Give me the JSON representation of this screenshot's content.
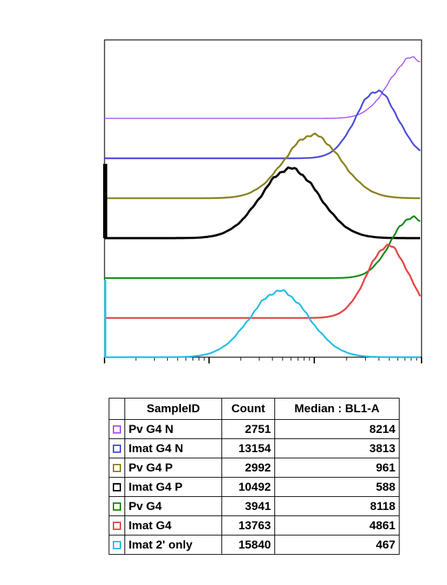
{
  "chart_data": {
    "type": "line",
    "subtype": "flow-cytometry-overlay-histogram",
    "xscale": "log",
    "grid": false,
    "legend": "table-below",
    "series": [
      {
        "name": "Pv G4 N",
        "color": "#a855f7",
        "count": "2751",
        "median": "8214",
        "peak_x": 8214,
        "width": 0.22
      },
      {
        "name": "Imat G4 N",
        "color": "#4b4bdc",
        "count": "13154",
        "median": "3813",
        "peak_x": 3813,
        "width": 0.2
      },
      {
        "name": "Pv G4 P",
        "color": "#8b8320",
        "count": "2992",
        "median": "961",
        "peak_x": 961,
        "width": 0.27
      },
      {
        "name": "Imat G4 P",
        "color": "#000000",
        "count": "10492",
        "median": "588",
        "peak_x": 588,
        "width": 0.28
      },
      {
        "name": "Pv G4",
        "color": "#138a13",
        "count": "3941",
        "median": "8118",
        "peak_x": 8118,
        "width": 0.2
      },
      {
        "name": "Imat G4",
        "color": "#e84545",
        "count": "13763",
        "median": "4861",
        "peak_x": 4861,
        "width": 0.2
      },
      {
        "name": "Imat 2' only",
        "color": "#22bde6",
        "count": "15840",
        "median": "467",
        "peak_x": 467,
        "width": 0.28
      }
    ]
  },
  "table": {
    "headers": [
      "",
      "SampleID",
      "Count",
      "Median : BL1-A"
    ]
  }
}
